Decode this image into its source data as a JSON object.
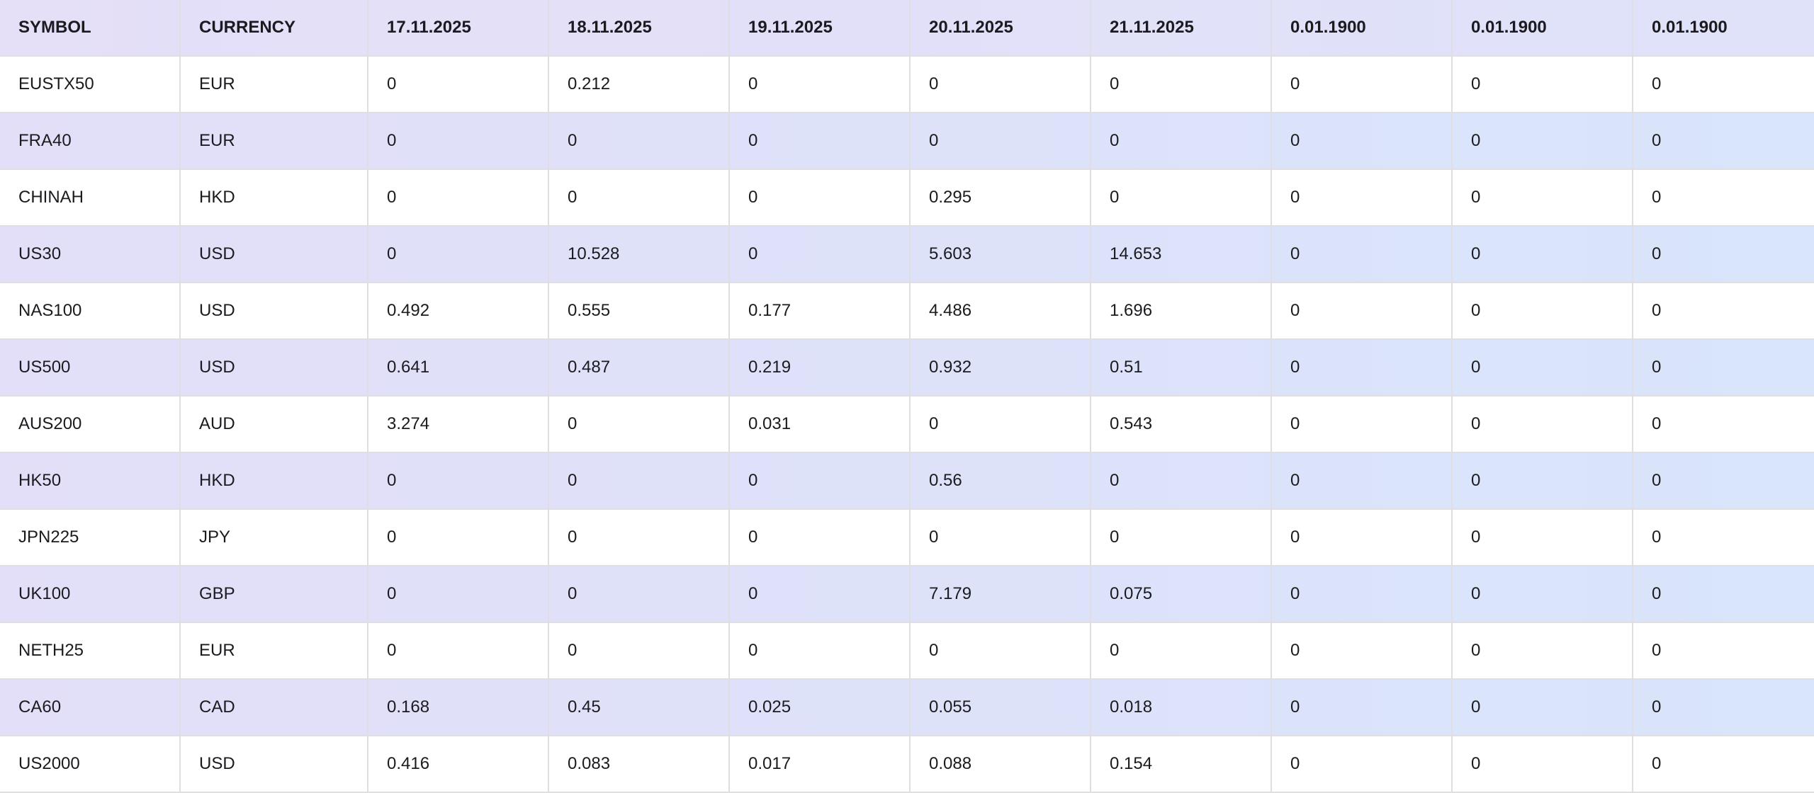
{
  "colors": {
    "header_bg_start": "#E5DFF8",
    "header_bg_end": "#DFE2F9",
    "stripe_bg_start": "#E3DFF8",
    "stripe_bg_mid": "#DDE2F9",
    "stripe_bg_end": "#D8E5FB",
    "row_bg": "#FFFFFF",
    "grid_line": "#DEDEE3",
    "text": "#1B1B1F"
  },
  "chart_data": {
    "type": "table",
    "title": "",
    "columns": [
      "SYMBOL",
      "CURRENCY",
      "17.11.2025",
      "18.11.2025",
      "19.11.2025",
      "20.11.2025",
      "21.11.2025",
      "0.01.1900",
      "0.01.1900",
      "0.01.1900"
    ],
    "rows": [
      [
        "EUSTX50",
        "EUR",
        "0",
        "0.212",
        "0",
        "0",
        "0",
        "0",
        "0",
        "0"
      ],
      [
        "FRA40",
        "EUR",
        "0",
        "0",
        "0",
        "0",
        "0",
        "0",
        "0",
        "0"
      ],
      [
        "CHINAH",
        "HKD",
        "0",
        "0",
        "0",
        "0.295",
        "0",
        "0",
        "0",
        "0"
      ],
      [
        "US30",
        "USD",
        "0",
        "10.528",
        "0",
        "5.603",
        "14.653",
        "0",
        "0",
        "0"
      ],
      [
        "NAS100",
        "USD",
        "0.492",
        "0.555",
        "0.177",
        "4.486",
        "1.696",
        "0",
        "0",
        "0"
      ],
      [
        "US500",
        "USD",
        "0.641",
        "0.487",
        "0.219",
        "0.932",
        "0.51",
        "0",
        "0",
        "0"
      ],
      [
        "AUS200",
        "AUD",
        "3.274",
        "0",
        "0.031",
        "0",
        "0.543",
        "0",
        "0",
        "0"
      ],
      [
        "HK50",
        "HKD",
        "0",
        "0",
        "0",
        "0.56",
        "0",
        "0",
        "0",
        "0"
      ],
      [
        "JPN225",
        "JPY",
        "0",
        "0",
        "0",
        "0",
        "0",
        "0",
        "0",
        "0"
      ],
      [
        "UK100",
        "GBP",
        "0",
        "0",
        "0",
        "7.179",
        "0.075",
        "0",
        "0",
        "0"
      ],
      [
        "NETH25",
        "EUR",
        "0",
        "0",
        "0",
        "0",
        "0",
        "0",
        "0",
        "0"
      ],
      [
        "CA60",
        "CAD",
        "0.168",
        "0.45",
        "0.025",
        "0.055",
        "0.018",
        "0",
        "0",
        "0"
      ],
      [
        "US2000",
        "USD",
        "0.416",
        "0.083",
        "0.017",
        "0.088",
        "0.154",
        "0",
        "0",
        "0"
      ]
    ],
    "layout": {
      "header_row": true,
      "zebra_striping": "odd data rows tinted, lavender-to-blue gradient left-to-right",
      "grid": true,
      "row_count": 13,
      "column_count": 10
    }
  }
}
